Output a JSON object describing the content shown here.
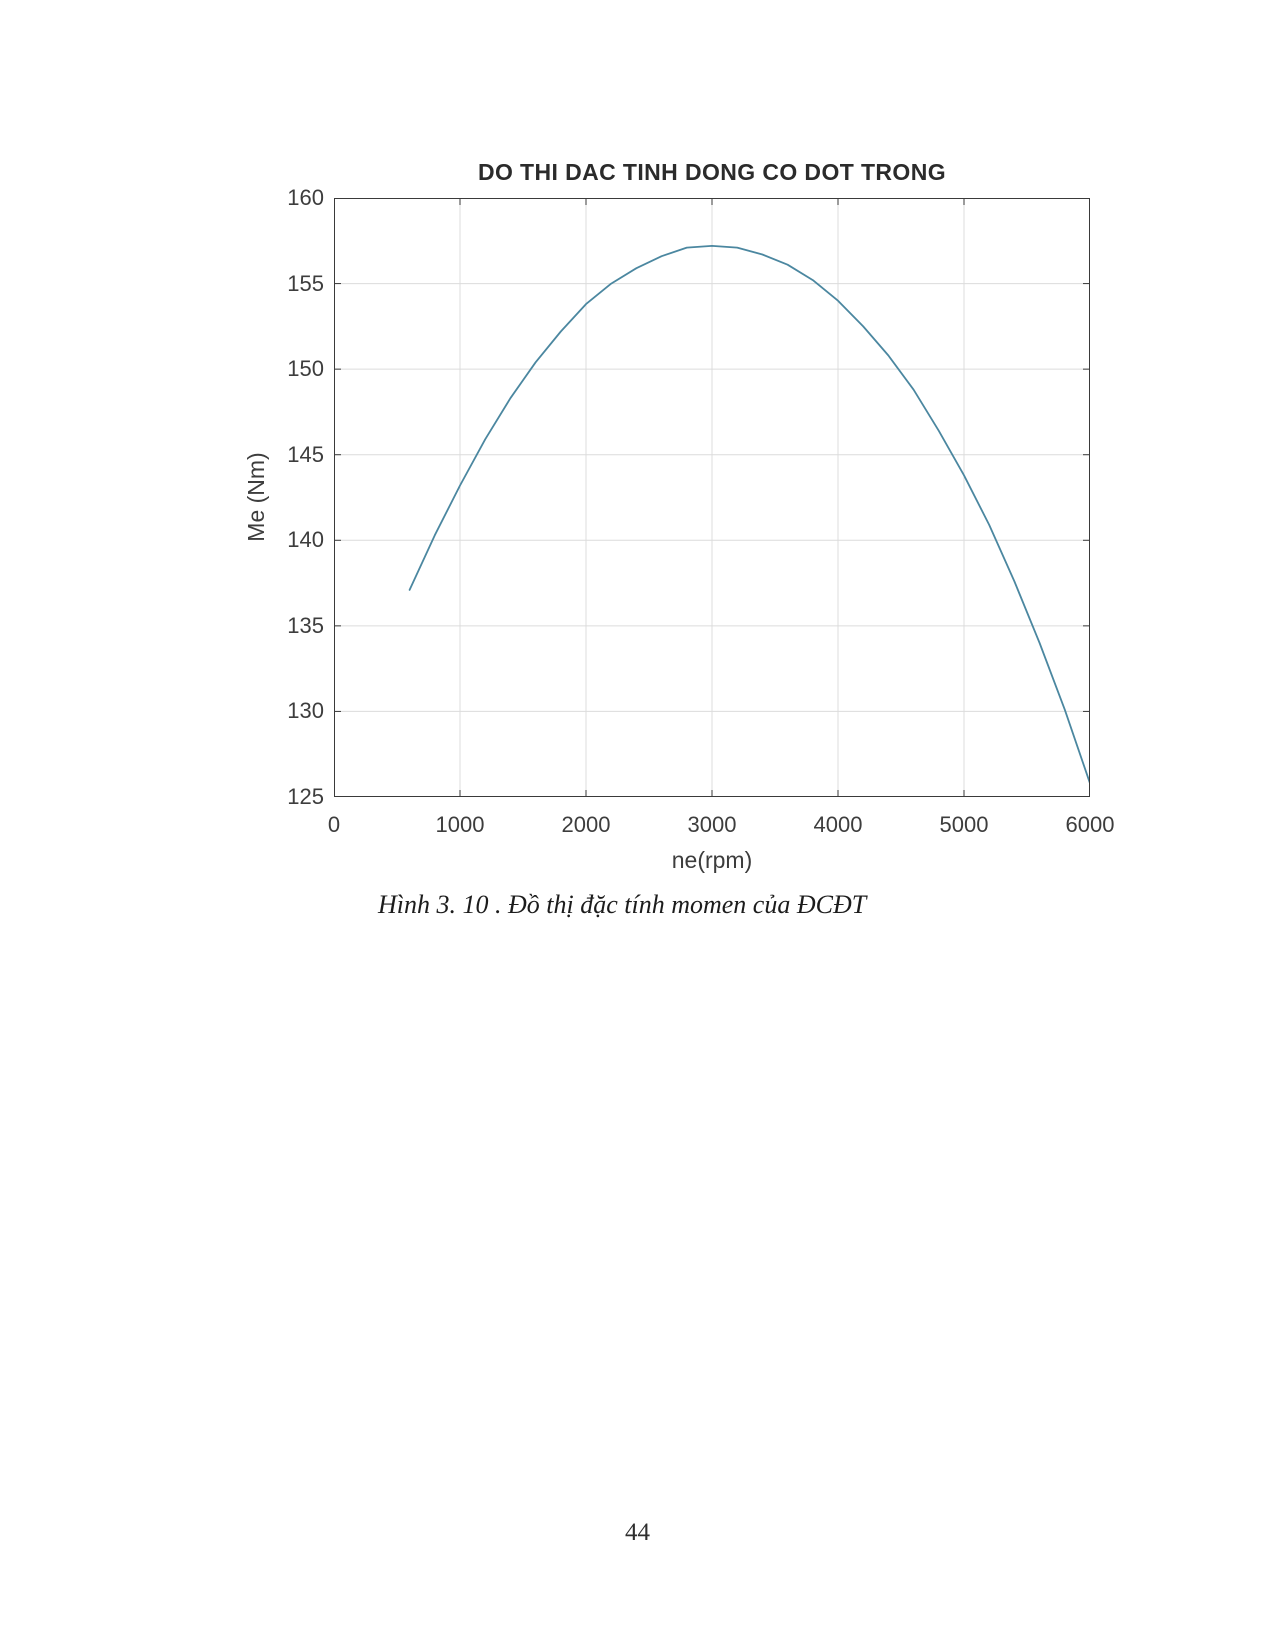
{
  "page": {
    "number": "44",
    "background": "#ffffff"
  },
  "figure": {
    "caption": "Hình 3. 10 . Đồ thị đặc tính momen của ĐCĐT"
  },
  "chart_data": {
    "type": "line",
    "title": "DO THI DAC TINH DONG CO DOT TRONG",
    "xlabel": "ne(rpm)",
    "ylabel": "Me (Nm)",
    "xlim": [
      0,
      6000
    ],
    "ylim": [
      125,
      160
    ],
    "x_ticks": [
      0,
      1000,
      2000,
      3000,
      4000,
      5000,
      6000
    ],
    "y_ticks": [
      125,
      130,
      135,
      140,
      145,
      150,
      155,
      160
    ],
    "grid": true,
    "legend": "none",
    "line_color": "#4b87a0",
    "axis_color": "#3a3a3a",
    "grid_color": "#dcdcdc",
    "peak": {
      "ne": 3000,
      "me": 157.2
    },
    "series": [
      {
        "name": "Me",
        "x": [
          600,
          800,
          1000,
          1200,
          1400,
          1600,
          1800,
          2000,
          2200,
          2400,
          2600,
          2800,
          3000,
          3200,
          3400,
          3600,
          3800,
          4000,
          4200,
          4400,
          4600,
          4800,
          5000,
          5200,
          5400,
          5600,
          5800,
          6000
        ],
        "y": [
          137.1,
          140.3,
          143.2,
          145.9,
          148.3,
          150.4,
          152.2,
          153.8,
          155.0,
          155.9,
          156.6,
          157.1,
          157.2,
          157.1,
          156.7,
          156.1,
          155.2,
          154.0,
          152.5,
          150.8,
          148.8,
          146.4,
          143.8,
          140.9,
          137.6,
          134.0,
          130.1,
          125.8
        ]
      }
    ]
  }
}
